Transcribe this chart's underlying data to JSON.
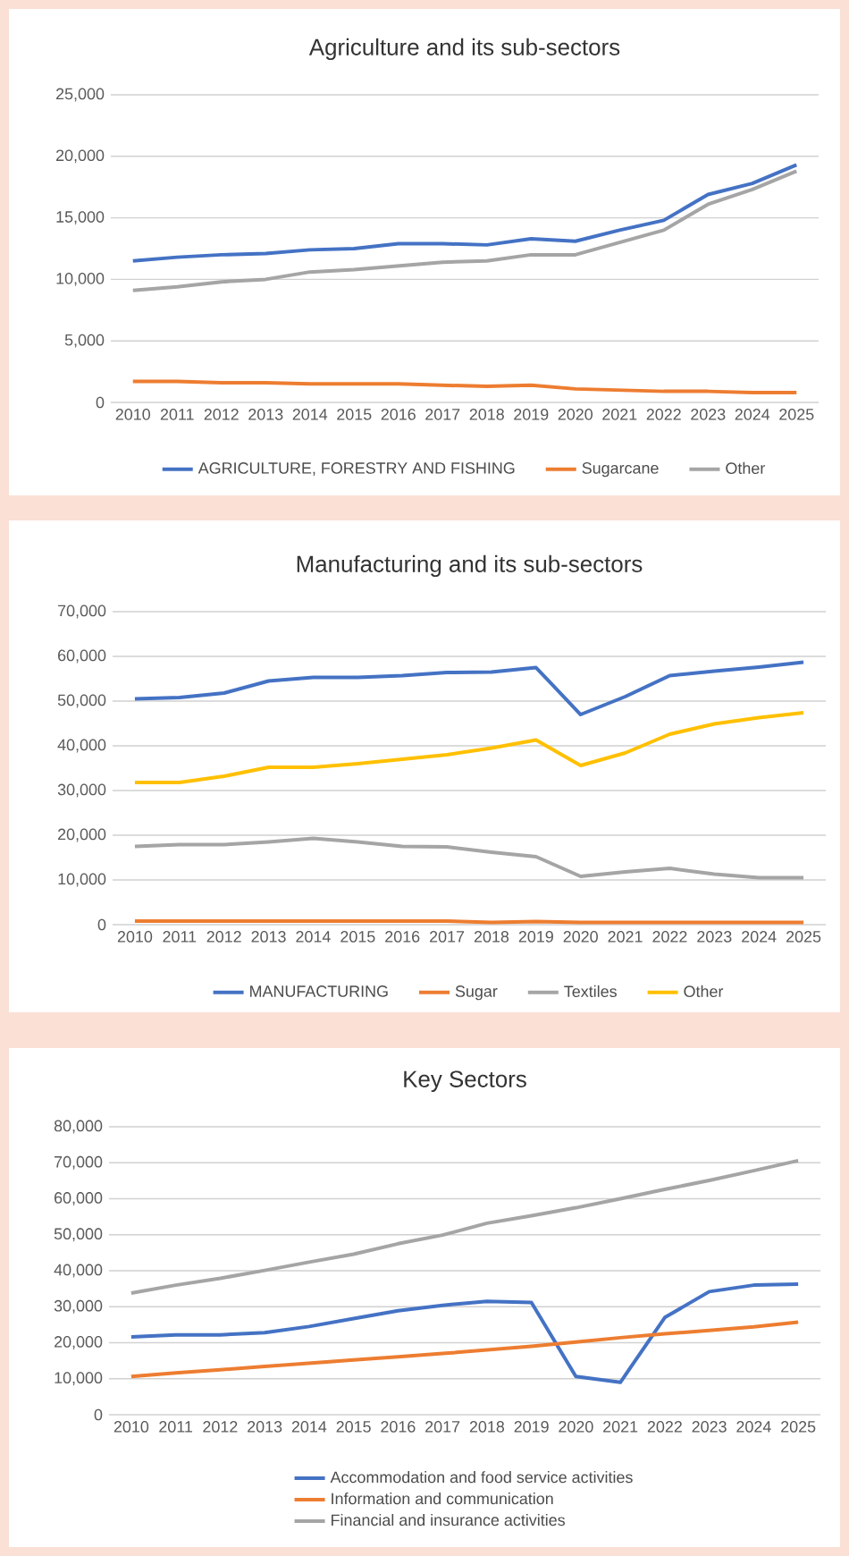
{
  "chart_data": [
    {
      "type": "line",
      "title": "Agriculture and its sub-sectors",
      "categories": [
        "2010",
        "2011",
        "2012",
        "2013",
        "2014",
        "2015",
        "2016",
        "2017",
        "2018",
        "2019",
        "2020",
        "2021",
        "2022",
        "2023",
        "2024",
        "2025"
      ],
      "series": [
        {
          "name": "AGRICULTURE, FORESTRY AND FISHING",
          "color": "#4472c4",
          "values": [
            11500,
            11800,
            12000,
            12100,
            12400,
            12500,
            12900,
            12900,
            12800,
            13300,
            13100,
            14000,
            14800,
            16900,
            17800,
            19300
          ]
        },
        {
          "name": "Sugarcane",
          "color": "#ed7d31",
          "values": [
            1700,
            1700,
            1600,
            1600,
            1500,
            1500,
            1500,
            1400,
            1300,
            1400,
            1100,
            1000,
            900,
            900,
            800,
            800
          ]
        },
        {
          "name": "Other",
          "color": "#a5a5a5",
          "values": [
            9100,
            9400,
            9800,
            10000,
            10600,
            10800,
            11100,
            11400,
            11500,
            12000,
            12000,
            13000,
            14000,
            16100,
            17300,
            18800
          ]
        }
      ],
      "ylim": [
        0,
        25000
      ],
      "yticks": [
        0,
        {
          "value": 5000,
          "label": "5,000"
        },
        {
          "value": 10000,
          "label": "10,000"
        },
        {
          "value": 15000,
          "label": "15,000"
        },
        {
          "value": 20000,
          "label": "20,000"
        },
        {
          "value": 25000,
          "label": "25,000"
        }
      ],
      "grid": "y",
      "legend": "bottom",
      "line_style": "solid"
    },
    {
      "type": "line",
      "title": "Manufacturing and its sub-sectors",
      "categories": [
        "2010",
        "2011",
        "2012",
        "2013",
        "2014",
        "2015",
        "2016",
        "2017",
        "2018",
        "2019",
        "2020",
        "2021",
        "2022",
        "2023",
        "2024",
        "2025"
      ],
      "series": [
        {
          "name": "MANUFACTURING",
          "color": "#4472c4",
          "values": [
            50500,
            50800,
            51800,
            54500,
            55300,
            55300,
            55700,
            56400,
            56500,
            57500,
            47000,
            51000,
            55700,
            56700,
            57600,
            58700
          ]
        },
        {
          "name": "Sugar",
          "color": "#ed7d31",
          "values": [
            800,
            800,
            800,
            800,
            800,
            800,
            800,
            800,
            500,
            700,
            500,
            500,
            500,
            500,
            500,
            500
          ]
        },
        {
          "name": "Textiles",
          "color": "#a5a5a5",
          "values": [
            17500,
            17900,
            17900,
            18500,
            19300,
            18500,
            17500,
            17400,
            16200,
            15200,
            10800,
            11800,
            12600,
            11300,
            10500,
            10500
          ]
        },
        {
          "name": "Other",
          "color": "#ffc000",
          "values": [
            31800,
            31800,
            33200,
            35200,
            35200,
            36000,
            37000,
            38000,
            39500,
            41300,
            35600,
            38400,
            42600,
            44900,
            46300,
            47400
          ]
        }
      ],
      "ylim": [
        0,
        70000
      ],
      "yticks": [
        0,
        {
          "value": 10000,
          "label": "10,000"
        },
        {
          "value": 20000,
          "label": "20,000"
        },
        {
          "value": 30000,
          "label": "30,000"
        },
        {
          "value": 40000,
          "label": "40,000"
        },
        {
          "value": 50000,
          "label": "50,000"
        },
        {
          "value": 60000,
          "label": "60,000"
        },
        {
          "value": 70000,
          "label": "70,000"
        }
      ],
      "grid": "y",
      "legend": "bottom",
      "line_style": "solid"
    },
    {
      "type": "line",
      "title": "Key Sectors",
      "categories": [
        "2010",
        "2011",
        "2012",
        "2013",
        "2014",
        "2015",
        "2016",
        "2017",
        "2018",
        "2019",
        "2020",
        "2021",
        "2022",
        "2023",
        "2024",
        "2025"
      ],
      "series": [
        {
          "name": "Accommodation and food service activities",
          "color": "#4472c4",
          "values": [
            21600,
            22200,
            22200,
            22800,
            24500,
            26700,
            28900,
            30400,
            31500,
            31200,
            10600,
            9000,
            27000,
            34200,
            36000,
            36300
          ]
        },
        {
          "name": "Information and communication",
          "color": "#ed7d31",
          "values": [
            10600,
            11600,
            12500,
            13400,
            14300,
            15200,
            16100,
            17000,
            18000,
            19000,
            20200,
            21400,
            22500,
            23400,
            24400,
            25700
          ]
        },
        {
          "name": "Financial and insurance activities",
          "color": "#a5a5a5",
          "values": [
            33800,
            36000,
            37900,
            40100,
            42400,
            44600,
            47500,
            49900,
            53200,
            55300,
            57500,
            60000,
            62600,
            65100,
            67800,
            70600
          ]
        }
      ],
      "ylim": [
        0,
        80000
      ],
      "yticks": [
        0,
        {
          "value": 10000,
          "label": "10,000"
        },
        {
          "value": 20000,
          "label": "20,000"
        },
        {
          "value": 30000,
          "label": "30,000"
        },
        {
          "value": 40000,
          "label": "40,000"
        },
        {
          "value": 50000,
          "label": "50,000"
        },
        {
          "value": 60000,
          "label": "60,000"
        },
        {
          "value": 70000,
          "label": "70,000"
        },
        {
          "value": 80000,
          "label": "80,000"
        }
      ],
      "grid": "y",
      "legend": "bottom",
      "line_style": "solid"
    }
  ]
}
